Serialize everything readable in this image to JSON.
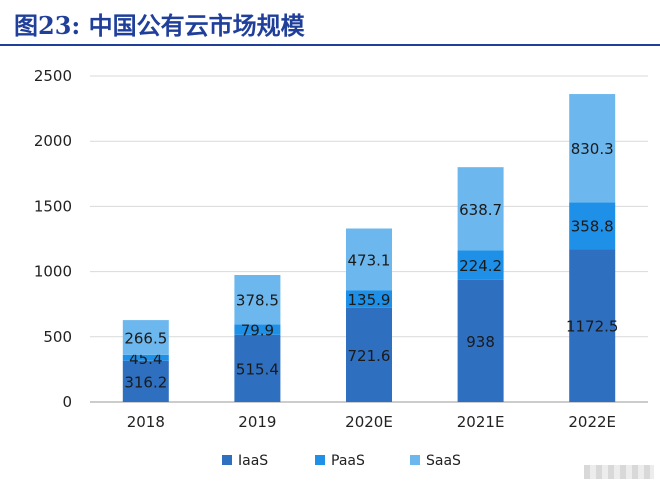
{
  "header": {
    "title": "图23:   中国公有云市场规模"
  },
  "colors": {
    "IaaS": "#2f6fbf",
    "PaaS": "#1e90e8",
    "SaaS": "#6cb8ee",
    "title": "#1f3f9a"
  },
  "chart_data": {
    "type": "bar",
    "stacked": true,
    "title": "",
    "xlabel": "",
    "ylabel": "",
    "ylim": [
      0,
      2500
    ],
    "yticks": [
      "0",
      "500",
      "1000",
      "1500",
      "2000",
      "2500"
    ],
    "grid": true,
    "legend_position": "bottom",
    "categories": [
      "2018",
      "2019",
      "2020E",
      "2021E",
      "2022E"
    ],
    "series": [
      {
        "name": "IaaS",
        "values": [
          316.2,
          515.4,
          721.6,
          938,
          1172.5
        ],
        "labels": [
          "316.2",
          "515.4",
          "721.6",
          "938",
          "1172.5"
        ]
      },
      {
        "name": "PaaS",
        "values": [
          45.4,
          79.9,
          135.9,
          224.2,
          358.8
        ],
        "labels": [
          "45.4",
          "79.9",
          "135.9",
          "224.2",
          "358.8"
        ]
      },
      {
        "name": "SaaS",
        "values": [
          266.5,
          378.5,
          473.1,
          638.7,
          830.3
        ],
        "labels": [
          "266.5",
          "378.5",
          "473.1",
          "638.7",
          "830.3"
        ]
      }
    ]
  }
}
